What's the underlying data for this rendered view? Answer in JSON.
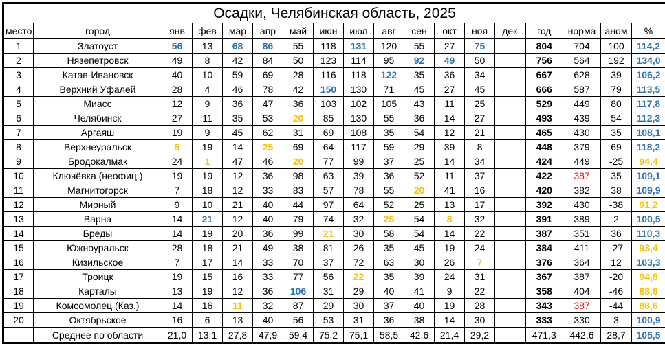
{
  "title": "Осадки, Челябинская область, 2025",
  "colors": {
    "record_high": "#2E75B6",
    "record_low": "#FFC000",
    "flagged_norm": "#FF0000",
    "grid": "#000000"
  },
  "table": {
    "headers": [
      "место",
      "город",
      "янв",
      "фев",
      "мар",
      "апр",
      "май",
      "июн",
      "июл",
      "авг",
      "сен",
      "окт",
      "ноя",
      "дек",
      "год",
      "норма",
      "аном",
      "%"
    ],
    "rows": [
      {
        "place": "1",
        "city": "Златоуст",
        "months": [
          [
            "56",
            "hi"
          ],
          [
            "13"
          ],
          [
            "68",
            "hi"
          ],
          [
            "86",
            "hi"
          ],
          [
            "55"
          ],
          [
            "118"
          ],
          [
            "131",
            "hi"
          ],
          [
            "120"
          ],
          [
            "55"
          ],
          [
            "27"
          ],
          [
            "75",
            "hi"
          ],
          [
            ""
          ]
        ],
        "year": "804",
        "norm": [
          "704"
        ],
        "anom": "100",
        "pct": [
          "114,2",
          "hi"
        ]
      },
      {
        "place": "2",
        "city": "Нязепетровск",
        "months": [
          [
            "49"
          ],
          [
            "8"
          ],
          [
            "42"
          ],
          [
            "84"
          ],
          [
            "50"
          ],
          [
            "123"
          ],
          [
            "114"
          ],
          [
            "95"
          ],
          [
            "92",
            "hi"
          ],
          [
            "49",
            "hi"
          ],
          [
            "50"
          ],
          [
            ""
          ]
        ],
        "year": "756",
        "norm": [
          "564"
        ],
        "anom": "192",
        "pct": [
          "134,0",
          "hi"
        ]
      },
      {
        "place": "3",
        "city": "Катав-Ивановск",
        "months": [
          [
            "40"
          ],
          [
            "10"
          ],
          [
            "59"
          ],
          [
            "69"
          ],
          [
            "28"
          ],
          [
            "116"
          ],
          [
            "118"
          ],
          [
            "122",
            "hi"
          ],
          [
            "35"
          ],
          [
            "36"
          ],
          [
            "34"
          ],
          [
            ""
          ]
        ],
        "year": "667",
        "norm": [
          "628"
        ],
        "anom": "39",
        "pct": [
          "106,2",
          "hi"
        ]
      },
      {
        "place": "4",
        "city": "Верхний Уфалей",
        "months": [
          [
            "28"
          ],
          [
            "4"
          ],
          [
            "46"
          ],
          [
            "78"
          ],
          [
            "42"
          ],
          [
            "150",
            "hi"
          ],
          [
            "130"
          ],
          [
            "71"
          ],
          [
            "45"
          ],
          [
            "27"
          ],
          [
            "45"
          ],
          [
            ""
          ]
        ],
        "year": "666",
        "norm": [
          "587"
        ],
        "anom": "79",
        "pct": [
          "113,5",
          "hi"
        ]
      },
      {
        "place": "5",
        "city": "Миасс",
        "months": [
          [
            "12"
          ],
          [
            "9"
          ],
          [
            "36"
          ],
          [
            "47"
          ],
          [
            "36"
          ],
          [
            "103"
          ],
          [
            "102"
          ],
          [
            "105"
          ],
          [
            "43"
          ],
          [
            "11"
          ],
          [
            "25"
          ],
          [
            ""
          ]
        ],
        "year": "529",
        "norm": [
          "449"
        ],
        "anom": "80",
        "pct": [
          "117,8",
          "hi"
        ]
      },
      {
        "place": "6",
        "city": "Челябинск",
        "months": [
          [
            "27"
          ],
          [
            "11"
          ],
          [
            "35"
          ],
          [
            "53"
          ],
          [
            "20",
            "lo"
          ],
          [
            "85"
          ],
          [
            "130"
          ],
          [
            "55"
          ],
          [
            "36"
          ],
          [
            "14"
          ],
          [
            "27"
          ],
          [
            ""
          ]
        ],
        "year": "493",
        "norm": [
          "439"
        ],
        "anom": "54",
        "pct": [
          "112,3",
          "hi"
        ]
      },
      {
        "place": "7",
        "city": "Аргаяш",
        "months": [
          [
            "19"
          ],
          [
            "9"
          ],
          [
            "45"
          ],
          [
            "62"
          ],
          [
            "31"
          ],
          [
            "69"
          ],
          [
            "108"
          ],
          [
            "35"
          ],
          [
            "54"
          ],
          [
            "12"
          ],
          [
            "21"
          ],
          [
            ""
          ]
        ],
        "year": "465",
        "norm": [
          "430"
        ],
        "anom": "35",
        "pct": [
          "108,1",
          "hi"
        ]
      },
      {
        "place": "8",
        "city": "Верхнеуральск",
        "months": [
          [
            "5",
            "lo"
          ],
          [
            "19"
          ],
          [
            "14"
          ],
          [
            "25",
            "lo"
          ],
          [
            "69"
          ],
          [
            "64"
          ],
          [
            "117"
          ],
          [
            "59"
          ],
          [
            "29"
          ],
          [
            "39"
          ],
          [
            "8"
          ],
          [
            ""
          ]
        ],
        "year": "448",
        "norm": [
          "379"
        ],
        "anom": "69",
        "pct": [
          "118,2",
          "hi"
        ]
      },
      {
        "place": "9",
        "city": "Бродокалмак",
        "months": [
          [
            "24"
          ],
          [
            "1",
            "lo"
          ],
          [
            "47"
          ],
          [
            "46"
          ],
          [
            "20",
            "lo"
          ],
          [
            "77"
          ],
          [
            "99"
          ],
          [
            "37"
          ],
          [
            "25"
          ],
          [
            "14"
          ],
          [
            "34"
          ],
          [
            ""
          ]
        ],
        "year": "424",
        "norm": [
          "449"
        ],
        "anom": "-25",
        "pct": [
          "94,4",
          "lo"
        ]
      },
      {
        "place": "10",
        "city": "Ключёвка (неофиц.)",
        "months": [
          [
            "19"
          ],
          [
            "19"
          ],
          [
            "12"
          ],
          [
            "36"
          ],
          [
            "98"
          ],
          [
            "63"
          ],
          [
            "39"
          ],
          [
            "36"
          ],
          [
            "52"
          ],
          [
            "11"
          ],
          [
            "37"
          ],
          [
            ""
          ]
        ],
        "year": "422",
        "norm": [
          "387",
          "flag"
        ],
        "anom": "35",
        "pct": [
          "109,1",
          "hi"
        ]
      },
      {
        "place": "11",
        "city": "Магнитогорск",
        "months": [
          [
            "7"
          ],
          [
            "18"
          ],
          [
            "12"
          ],
          [
            "33"
          ],
          [
            "83"
          ],
          [
            "57"
          ],
          [
            "78"
          ],
          [
            "55"
          ],
          [
            "20",
            "lo"
          ],
          [
            "41"
          ],
          [
            "16"
          ],
          [
            ""
          ]
        ],
        "year": "420",
        "norm": [
          "382"
        ],
        "anom": "38",
        "pct": [
          "109,9",
          "hi"
        ]
      },
      {
        "place": "12",
        "city": "Мирный",
        "months": [
          [
            "9"
          ],
          [
            "10"
          ],
          [
            "21"
          ],
          [
            "40"
          ],
          [
            "44"
          ],
          [
            "97"
          ],
          [
            "64"
          ],
          [
            "52"
          ],
          [
            "25"
          ],
          [
            "13"
          ],
          [
            "17"
          ],
          [
            ""
          ]
        ],
        "year": "392",
        "norm": [
          "430"
        ],
        "anom": "-38",
        "pct": [
          "91,2",
          "lo"
        ]
      },
      {
        "place": "13",
        "city": "Варна",
        "months": [
          [
            "14"
          ],
          [
            "21",
            "hi"
          ],
          [
            "12"
          ],
          [
            "40"
          ],
          [
            "79"
          ],
          [
            "74"
          ],
          [
            "32"
          ],
          [
            "25",
            "lo"
          ],
          [
            "54"
          ],
          [
            "8",
            "lo"
          ],
          [
            "32"
          ],
          [
            ""
          ]
        ],
        "year": "391",
        "norm": [
          "389"
        ],
        "anom": "2",
        "pct": [
          "100,5",
          "hi"
        ]
      },
      {
        "place": "14",
        "city": "Бреды",
        "months": [
          [
            "14"
          ],
          [
            "19"
          ],
          [
            "20"
          ],
          [
            "36"
          ],
          [
            "99"
          ],
          [
            "21",
            "lo"
          ],
          [
            "30"
          ],
          [
            "58"
          ],
          [
            "54"
          ],
          [
            "14"
          ],
          [
            "22"
          ],
          [
            ""
          ]
        ],
        "year": "387",
        "norm": [
          "351"
        ],
        "anom": "36",
        "pct": [
          "110,3",
          "hi"
        ]
      },
      {
        "place": "15",
        "city": "Южноуральск",
        "months": [
          [
            "28"
          ],
          [
            "18"
          ],
          [
            "21"
          ],
          [
            "49"
          ],
          [
            "38"
          ],
          [
            "81"
          ],
          [
            "26"
          ],
          [
            "35"
          ],
          [
            "45"
          ],
          [
            "19"
          ],
          [
            "24"
          ],
          [
            ""
          ]
        ],
        "year": "384",
        "norm": [
          "411"
        ],
        "anom": "-27",
        "pct": [
          "93,4",
          "lo"
        ]
      },
      {
        "place": "16",
        "city": "Кизильское",
        "months": [
          [
            "7"
          ],
          [
            "17"
          ],
          [
            "14"
          ],
          [
            "33"
          ],
          [
            "70"
          ],
          [
            "37"
          ],
          [
            "72"
          ],
          [
            "63"
          ],
          [
            "30"
          ],
          [
            "26"
          ],
          [
            "7",
            "lo"
          ],
          [
            ""
          ]
        ],
        "year": "376",
        "norm": [
          "364"
        ],
        "anom": "12",
        "pct": [
          "103,3",
          "hi"
        ]
      },
      {
        "place": "17",
        "city": "Троицк",
        "months": [
          [
            "19"
          ],
          [
            "15"
          ],
          [
            "16"
          ],
          [
            "33"
          ],
          [
            "77"
          ],
          [
            "56"
          ],
          [
            "22",
            "lo"
          ],
          [
            "35"
          ],
          [
            "39"
          ],
          [
            "24"
          ],
          [
            "31"
          ],
          [
            ""
          ]
        ],
        "year": "367",
        "norm": [
          "387"
        ],
        "anom": "-20",
        "pct": [
          "94,8",
          "lo"
        ]
      },
      {
        "place": "18",
        "city": "Карталы",
        "months": [
          [
            "13"
          ],
          [
            "19"
          ],
          [
            "12"
          ],
          [
            "36"
          ],
          [
            "106",
            "hi"
          ],
          [
            "31"
          ],
          [
            "29"
          ],
          [
            "40"
          ],
          [
            "41"
          ],
          [
            "9"
          ],
          [
            "22"
          ],
          [
            ""
          ]
        ],
        "year": "358",
        "norm": [
          "404"
        ],
        "anom": "-46",
        "pct": [
          "88,6",
          "lo"
        ]
      },
      {
        "place": "19",
        "city": "Комсомолец (Каз.)",
        "months": [
          [
            "14"
          ],
          [
            "16"
          ],
          [
            "11",
            "lo"
          ],
          [
            "32"
          ],
          [
            "87"
          ],
          [
            "29"
          ],
          [
            "30"
          ],
          [
            "37"
          ],
          [
            "40"
          ],
          [
            "19"
          ],
          [
            "28"
          ],
          [
            ""
          ]
        ],
        "year": "343",
        "norm": [
          "387",
          "flag"
        ],
        "anom": "-44",
        "pct": [
          "88,6",
          "lo"
        ]
      },
      {
        "place": "20",
        "city": "Октябрьское",
        "months": [
          [
            "16"
          ],
          [
            "6"
          ],
          [
            "13"
          ],
          [
            "40"
          ],
          [
            "56"
          ],
          [
            "53"
          ],
          [
            "31"
          ],
          [
            "36"
          ],
          [
            "38"
          ],
          [
            "14"
          ],
          [
            "30"
          ],
          [
            ""
          ]
        ],
        "year": "333",
        "norm": [
          "330"
        ],
        "anom": "3",
        "pct": [
          "100,9",
          "hi"
        ]
      }
    ],
    "summary": {
      "place": "",
      "label": "Среднее по области",
      "months": [
        "21,0",
        "13,1",
        "27,8",
        "47,9",
        "59,4",
        "75,2",
        "75,1",
        "58,5",
        "42,6",
        "21,4",
        "29,2",
        ""
      ],
      "year": "471,3",
      "norm": "442,6",
      "anom": "28,7",
      "pct": [
        "105,5",
        "hi"
      ]
    }
  }
}
